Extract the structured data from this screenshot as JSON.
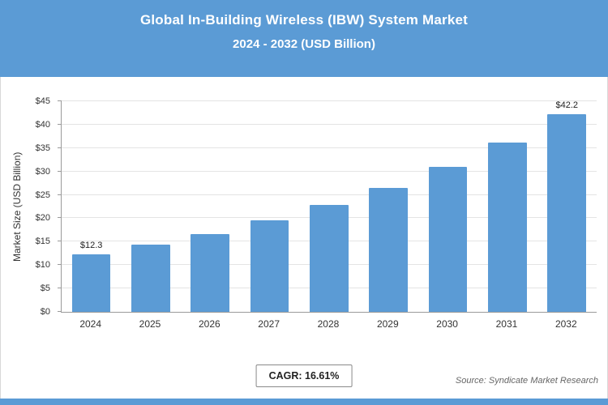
{
  "header": {
    "title_line1": "Global In-Building Wireless (IBW) System Market",
    "title_line2": "2024 - 2032 (USD Billion)"
  },
  "chart_data": {
    "type": "bar",
    "title": "Global In-Building Wireless (IBW) System Market 2024 - 2032 (USD Billion)",
    "categories": [
      "2024",
      "2025",
      "2026",
      "2027",
      "2028",
      "2029",
      "2030",
      "2031",
      "2032"
    ],
    "values": [
      12.3,
      14.3,
      16.7,
      19.5,
      22.8,
      26.5,
      31.0,
      36.1,
      42.2
    ],
    "bar_labels": [
      "$12.3",
      "",
      "",
      "",
      "",
      "",
      "",
      "",
      "$42.2"
    ],
    "xlabel": "",
    "ylabel": "Market Size (USD Billion)",
    "ylim": [
      0,
      45
    ],
    "ytick_step": 5,
    "ytick_prefix": "$",
    "grid": true,
    "legend": "none",
    "bar_color": "#5b9bd5"
  },
  "footer": {
    "cagr_label": "CAGR: 16.61%",
    "source": "Source: Syndicate Market Research"
  },
  "colors": {
    "header_bg": "#5b9bd5",
    "accent_strip": "#5b9bd5"
  }
}
